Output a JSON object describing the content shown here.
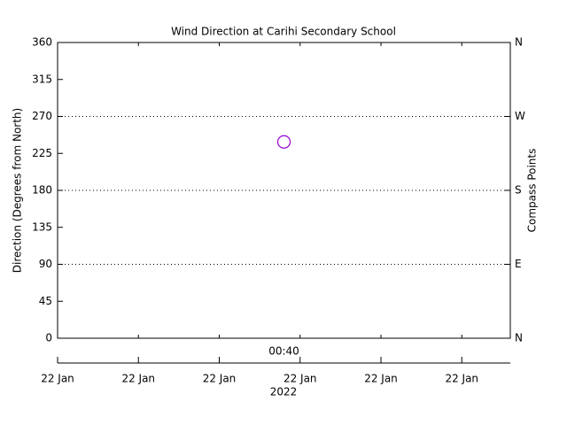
{
  "chart_data": {
    "type": "scatter",
    "title": "Wind Direction at Carihi Secondary School",
    "ylabel": "Direction (Degrees from North)",
    "y2label": "Compass Points",
    "x": [
      "00:40"
    ],
    "values": [
      239
    ],
    "color": "#9b00d8",
    "ylim": [
      0,
      360
    ],
    "yticks": [
      0,
      45,
      90,
      135,
      180,
      225,
      270,
      315,
      360
    ],
    "y2lim": [
      0,
      360
    ],
    "y2ticks": [
      {
        "value": 0,
        "label": "N"
      },
      {
        "value": 90,
        "label": "E"
      },
      {
        "value": 180,
        "label": "S"
      },
      {
        "value": 270,
        "label": "W"
      },
      {
        "value": 360,
        "label": "N"
      }
    ],
    "grid": true,
    "date_ticks": [
      "22 Jan",
      "22 Jan",
      "22 Jan",
      "22 Jan",
      "22 Jan",
      "22 Jan"
    ],
    "date_label": "2022"
  }
}
